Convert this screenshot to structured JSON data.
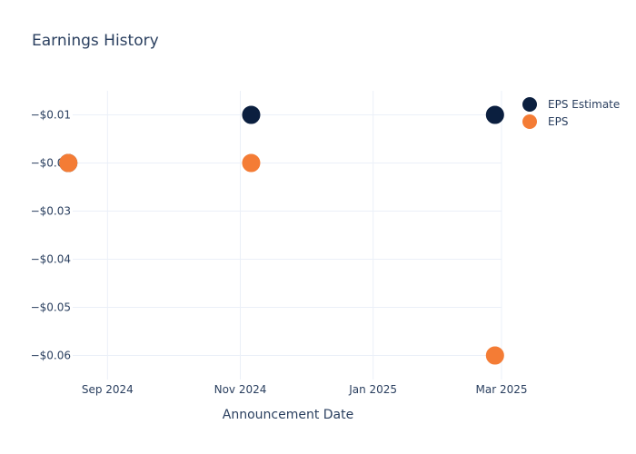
{
  "chart_data": {
    "type": "scatter",
    "title": "Earnings History",
    "xlabel": "Announcement Date",
    "ylabel": "",
    "x_ticks": [
      {
        "label": "Sep 2024",
        "date": "2024-09-01"
      },
      {
        "label": "Nov 2024",
        "date": "2024-11-01"
      },
      {
        "label": "Jan 2025",
        "date": "2025-01-01"
      },
      {
        "label": "Mar 2025",
        "date": "2025-03-01"
      }
    ],
    "y_ticks": [
      {
        "label": "−$0.01",
        "value": -0.01
      },
      {
        "label": "−$0.02",
        "value": -0.02
      },
      {
        "label": "−$0.03",
        "value": -0.03
      },
      {
        "label": "−$0.04",
        "value": -0.04
      },
      {
        "label": "−$0.05",
        "value": -0.05
      },
      {
        "label": "−$0.06",
        "value": -0.06
      }
    ],
    "xlim": [
      "2024-08-16",
      "2025-03-01"
    ],
    "ylim": [
      -0.065,
      -0.005
    ],
    "grid": true,
    "legend_position": "top-right",
    "series": [
      {
        "name": "EPS Estimate",
        "color": "#0b1f3f",
        "points": [
          {
            "x": "2024-08-14",
            "y": -0.02
          },
          {
            "x": "2024-11-06",
            "y": -0.01
          },
          {
            "x": "2025-02-26",
            "y": -0.01
          }
        ]
      },
      {
        "name": "EPS",
        "color": "#f47c35",
        "points": [
          {
            "x": "2024-08-14",
            "y": -0.02
          },
          {
            "x": "2024-11-06",
            "y": -0.02
          },
          {
            "x": "2025-02-26",
            "y": -0.06
          }
        ]
      }
    ]
  }
}
